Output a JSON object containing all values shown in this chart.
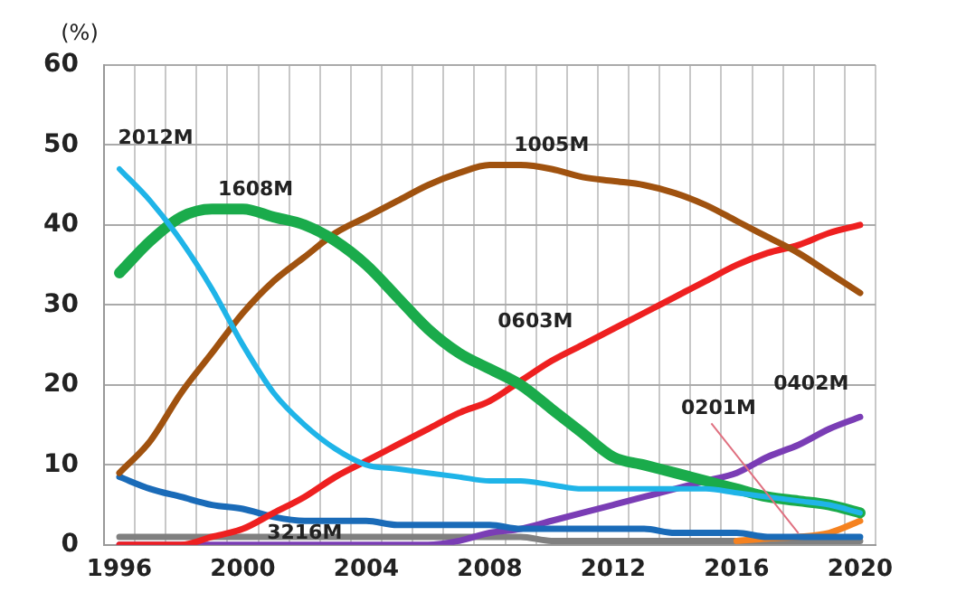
{
  "chart_data": {
    "type": "line",
    "ylabel": "(%)",
    "categories": [
      "1996",
      null,
      null,
      null,
      "2000",
      null,
      null,
      null,
      "2004",
      null,
      null,
      null,
      "2008",
      null,
      null,
      null,
      "2012",
      null,
      null,
      null,
      "2016",
      null,
      null,
      null,
      "2020"
    ],
    "series": [
      {
        "name": "2012M",
        "color": "#1fb4e8",
        "values": [
          47,
          43,
          38,
          32,
          25,
          19,
          15,
          12,
          10,
          9.5,
          9,
          8.5,
          8,
          8,
          7.5,
          7,
          7,
          7,
          7,
          7,
          6.5,
          6,
          5.5,
          5,
          4
        ]
      },
      {
        "name": "1608M",
        "color": "#1aab4b",
        "values": [
          34,
          38,
          41,
          42,
          42,
          41,
          40,
          38,
          35,
          31,
          27,
          24,
          22,
          20,
          17,
          14,
          11,
          10,
          9,
          8,
          7,
          6,
          5.5,
          5,
          4
        ]
      },
      {
        "name": "1005M",
        "color": "#a0520f",
        "values": [
          9,
          13,
          19,
          24,
          29,
          33,
          36,
          39,
          41,
          43,
          45,
          46.5,
          47.5,
          47.5,
          47,
          46,
          45.5,
          45,
          44,
          42.5,
          40.5,
          38.5,
          36.5,
          34,
          31.5
        ]
      },
      {
        "name": "0603M",
        "color": "#ee2020",
        "values": [
          0,
          0,
          0,
          1,
          2,
          4,
          6,
          8.5,
          10.5,
          12.5,
          14.5,
          16.5,
          18,
          20.5,
          23,
          25,
          27,
          29,
          31,
          33,
          35,
          36.5,
          37.5,
          39,
          40
        ]
      },
      {
        "name": "3216M",
        "color": "#1a6bb8",
        "values": [
          8.5,
          7,
          6,
          5,
          4.5,
          3.5,
          3,
          3,
          3,
          2.5,
          2.5,
          2.5,
          2.5,
          2,
          2,
          2,
          2,
          2,
          1.5,
          1.5,
          1.5,
          1,
          1,
          1,
          1
        ]
      },
      {
        "name": "0402M",
        "color": "#7a3db5",
        "values": [
          0,
          0,
          0,
          0,
          0,
          0,
          0,
          0,
          0,
          0,
          0,
          0.5,
          1.5,
          2,
          3,
          4,
          5,
          6,
          7,
          8,
          9,
          11,
          12.5,
          14.5,
          16
        ]
      },
      {
        "name": "0201M",
        "color": "#f58220",
        "values": [
          null,
          null,
          null,
          null,
          null,
          null,
          null,
          null,
          null,
          null,
          null,
          null,
          null,
          null,
          null,
          null,
          null,
          null,
          null,
          null,
          0.5,
          0.8,
          1,
          1.5,
          3
        ]
      },
      {
        "color": "#808080",
        "values": [
          1,
          1,
          1,
          1,
          1,
          1,
          1,
          1,
          1,
          1,
          1,
          1,
          1,
          1,
          0.5,
          0.5,
          0.5,
          0.5,
          0.5,
          0.5,
          0.5,
          0.5,
          0.5,
          0.5,
          0.5
        ]
      }
    ],
    "ylim": [
      0,
      60
    ],
    "yticks": [
      0,
      10,
      20,
      30,
      40,
      50,
      60
    ],
    "grid": true,
    "legend": false,
    "marker": "none",
    "line_style": "solid"
  }
}
